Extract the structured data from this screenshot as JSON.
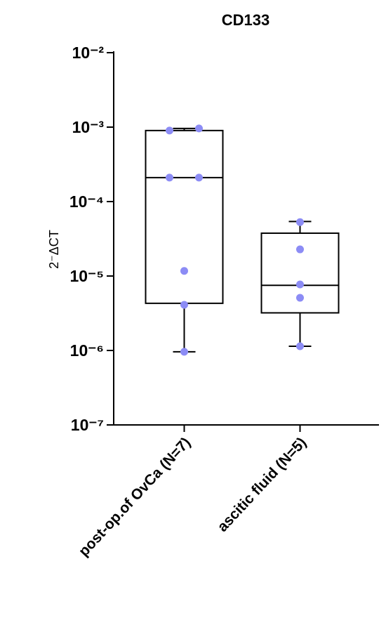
{
  "chart_data": {
    "type": "box",
    "title": "CD133",
    "y_label": "2⁻ΔCT",
    "log_y": true,
    "ylim": [
      1e-07,
      0.01
    ],
    "yticks": [
      {
        "value": 0.01,
        "label": "10⁻²"
      },
      {
        "value": 0.001,
        "label": "10⁻³"
      },
      {
        "value": 0.0001,
        "label": "10⁻⁴"
      },
      {
        "value": 1e-05,
        "label": "10⁻⁵"
      },
      {
        "value": 1e-06,
        "label": "10⁻⁶"
      },
      {
        "value": 1e-07,
        "label": "10⁻⁷"
      }
    ],
    "categories": [
      "post-op.of OvCa (N=7)",
      "ascitic fluid (N=5)"
    ],
    "point_color": "#8c8cf5",
    "boxes": [
      {
        "min": 9.6e-07,
        "q1": 4.3e-06,
        "median": 0.00021,
        "q3": 0.0009,
        "max": 0.00096,
        "points": [
          0.0009,
          0.00096,
          0.00021,
          0.00021,
          1.17e-05,
          4.1e-06,
          9.6e-07
        ]
      },
      {
        "min": 1.14e-06,
        "q1": 3.2e-06,
        "median": 7.5e-06,
        "q3": 3.76e-05,
        "max": 5.4e-05,
        "points": [
          5.3e-05,
          2.28e-05,
          7.7e-06,
          5.1e-06,
          1.14e-06
        ]
      }
    ]
  }
}
